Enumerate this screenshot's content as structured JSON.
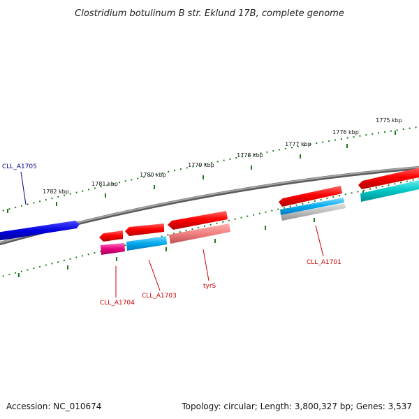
{
  "title": "Clostridium botulinum B str. Eklund 17B, complete genome",
  "footer": {
    "accession": "Accession: NC_010674",
    "summary": "Topology: circular; Length: 3,800,327 bp; Genes: 3,537"
  },
  "ruler": {
    "ticks": [
      {
        "label": "1775 kbp"
      },
      {
        "label": "1776 kbp"
      },
      {
        "label": "1777 kbp"
      },
      {
        "label": "1778 kbp"
      },
      {
        "label": "1779 kbp"
      },
      {
        "label": "1780 kbp"
      },
      {
        "label": "1781 kbp"
      },
      {
        "label": "1782 kbp"
      }
    ]
  },
  "genes": [
    {
      "id": "CLL_A1705",
      "label": "CLL_A1705",
      "color": "#0000cc",
      "label_color": "#00008b"
    },
    {
      "id": "CLL_A1704",
      "label": "CLL_A1704",
      "color": "#e6007e",
      "label_color": "#cc0000"
    },
    {
      "id": "CLL_A1703",
      "label": "CLL_A1703",
      "color": "#00aaee",
      "label_color": "#cc0000"
    },
    {
      "id": "tyrS",
      "label": "tyrS",
      "color": "#f08080",
      "label_color": "#cc0000"
    },
    {
      "id": "CLL_A1701",
      "label": "CLL_A1701",
      "color": "#00aaee",
      "label_color": "#cc0000"
    }
  ],
  "colors": {
    "backbone": "#808080",
    "cds": "#ff0000",
    "ruler": "#1a7a1a",
    "teal_feature": "#00c8c8"
  }
}
